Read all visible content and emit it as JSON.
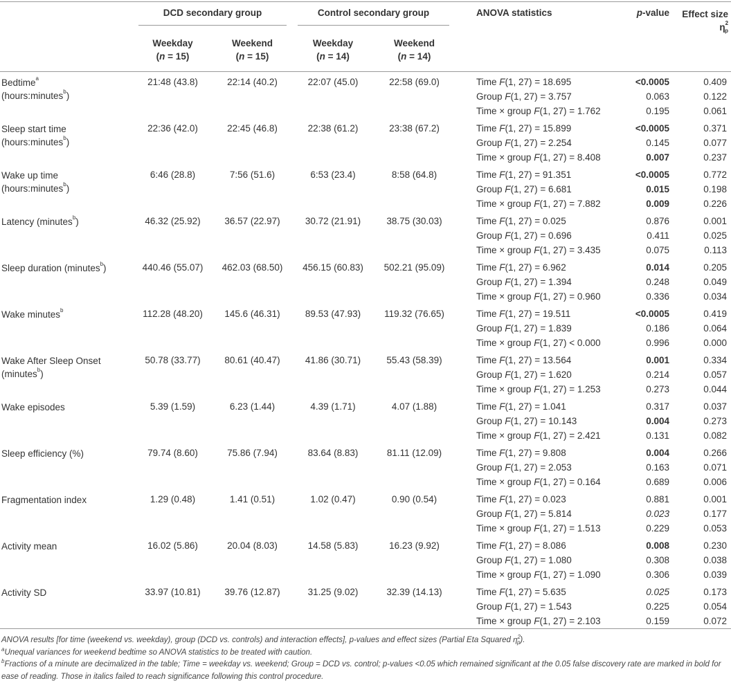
{
  "header": {
    "groups": [
      "DCD secondary group",
      "Control secondary group"
    ],
    "anova": "ANOVA statistics",
    "p": "p-value",
    "effect": [
      "Effect size η",
      {
        "sup": "2"
      },
      {
        "sub": "p"
      }
    ],
    "subheaders": [
      {
        "day": "Weekday",
        "n": "(n = 15)"
      },
      {
        "day": "Weekend",
        "n": "(n = 15)"
      },
      {
        "day": "Weekday",
        "n": "(n = 14)"
      },
      {
        "day": "Weekend",
        "n": "(n = 14)"
      }
    ]
  },
  "rows": [
    {
      "name": [
        "Bedtime",
        {
          "sup": "a"
        }
      ],
      "unit": [
        "(hours:minutes",
        {
          "sup": "b"
        },
        ")"
      ],
      "values": [
        "21:48 (43.8)",
        "22:14 (40.2)",
        "22:07 (45.0)",
        "22:58 (69.0)"
      ],
      "stats": [
        {
          "text": "Time F(1, 27) = 18.695",
          "p": "<0.0005",
          "p_style": "bold",
          "eta": "0.409"
        },
        {
          "text": "Group F(1, 27) = 3.757",
          "p": "0.063",
          "eta": "0.122"
        },
        {
          "text": "Time × group F(1, 27) = 1.762",
          "p": "0.195",
          "eta": "0.061"
        }
      ]
    },
    {
      "name": [
        "Sleep start time"
      ],
      "unit": [
        "(hours:minutes",
        {
          "sup": "b"
        },
        ")"
      ],
      "values": [
        "22:36 (42.0)",
        "22:45 (46.8)",
        "22:38 (61.2)",
        "23:38 (67.2)"
      ],
      "stats": [
        {
          "text": "Time F(1, 27) = 15.899",
          "p": "<0.0005",
          "p_style": "bold",
          "eta": "0.371"
        },
        {
          "text": "Group F(1, 27) = 2.254",
          "p": "0.145",
          "eta": "0.077"
        },
        {
          "text": "Time × group F(1, 27) = 8.408",
          "p": "0.007",
          "p_style": "bold",
          "eta": "0.237"
        }
      ]
    },
    {
      "name": [
        "Wake up time"
      ],
      "unit": [
        "(hours:minutes",
        {
          "sup": "b"
        },
        ")"
      ],
      "values": [
        "6:46 (28.8)",
        "7:56 (51.6)",
        "6:53 (23.4)",
        "8:58 (64.8)"
      ],
      "stats": [
        {
          "text": "Time F(1, 27) = 91.351",
          "p": "<0.0005",
          "p_style": "bold",
          "eta": "0.772"
        },
        {
          "text": "Group F(1, 27) = 6.681",
          "p": "0.015",
          "p_style": "bold",
          "eta": "0.198"
        },
        {
          "text": "Time × group F(1, 27) = 7.882",
          "p": "0.009",
          "p_style": "bold",
          "eta": "0.226"
        }
      ]
    },
    {
      "name": [
        "Latency (minutes",
        {
          "sup": "b"
        },
        ")"
      ],
      "values": [
        "46.32 (25.92)",
        "36.57 (22.97)",
        "30.72 (21.91)",
        "38.75 (30.03)"
      ],
      "stats": [
        {
          "text": "Time F(1, 27) = 0.025",
          "p": "0.876",
          "eta": "0.001"
        },
        {
          "text": "Group F(1, 27) = 0.696",
          "p": "0.411",
          "eta": "0.025"
        },
        {
          "text": "Time × group F(1, 27) = 3.435",
          "p": "0.075",
          "eta": "0.113"
        }
      ]
    },
    {
      "name": [
        "Sleep duration (minutes",
        {
          "sup": "b"
        },
        ")"
      ],
      "values": [
        "440.46 (55.07)",
        "462.03 (68.50)",
        "456.15 (60.83)",
        "502.21 (95.09)"
      ],
      "stats": [
        {
          "text": "Time F(1, 27) = 6.962",
          "p": "0.014",
          "p_style": "bold",
          "eta": "0.205"
        },
        {
          "text": "Group F(1, 27) = 1.394",
          "p": "0.248",
          "eta": "0.049"
        },
        {
          "text": "Time × group F(1, 27) = 0.960",
          "p": "0.336",
          "eta": "0.034"
        }
      ]
    },
    {
      "name": [
        "Wake minutes",
        {
          "sup": "b"
        }
      ],
      "values": [
        "112.28 (48.20)",
        "145.6 (46.31)",
        "89.53 (47.93)",
        "119.32 (76.65)"
      ],
      "stats": [
        {
          "text": "Time F(1, 27) = 19.511",
          "p": "<0.0005",
          "p_style": "bold",
          "eta": "0.419"
        },
        {
          "text": "Group F(1, 27) = 1.839",
          "p": "0.186",
          "eta": "0.064"
        },
        {
          "text": "Time × group F(1, 27) < 0.000",
          "p": "0.996",
          "eta": "0.000"
        }
      ]
    },
    {
      "name": [
        "Wake After Sleep Onset"
      ],
      "unit": [
        "(minutes",
        {
          "sup": "b"
        },
        ")"
      ],
      "values": [
        "50.78 (33.77)",
        "80.61 (40.47)",
        "41.86 (30.71)",
        "55.43 (58.39)"
      ],
      "stats": [
        {
          "text": "Time F(1, 27) = 13.564",
          "p": "0.001",
          "p_style": "bold",
          "eta": "0.334"
        },
        {
          "text": "Group F(1, 27) = 1.620",
          "p": "0.214",
          "eta": "0.057"
        },
        {
          "text": "Time × group F(1, 27) = 1.253",
          "p": "0.273",
          "eta": "0.044"
        }
      ]
    },
    {
      "name": [
        "Wake episodes"
      ],
      "values": [
        "5.39 (1.59)",
        "6.23 (1.44)",
        "4.39 (1.71)",
        "4.07 (1.88)"
      ],
      "stats": [
        {
          "text": "Time F(1, 27) = 1.041",
          "p": "0.317",
          "eta": "0.037"
        },
        {
          "text": "Group F(1, 27) = 10.143",
          "p": "0.004",
          "p_style": "bold",
          "eta": "0.273"
        },
        {
          "text": "Time × group F(1, 27) = 2.421",
          "p": "0.131",
          "eta": "0.082"
        }
      ]
    },
    {
      "name": [
        "Sleep efficiency (%)"
      ],
      "values": [
        "79.74 (8.60)",
        "75.86 (7.94)",
        "83.64 (8.83)",
        "81.11 (12.09)"
      ],
      "stats": [
        {
          "text": "Time F(1, 27) = 9.808",
          "p": "0.004",
          "p_style": "bold",
          "eta": "0.266"
        },
        {
          "text": "Group F(1, 27) = 2.053",
          "p": "0.163",
          "eta": "0.071"
        },
        {
          "text": "Time × group F(1, 27) = 0.164",
          "p": "0.689",
          "eta": "0.006"
        }
      ]
    },
    {
      "name": [
        "Fragmentation index"
      ],
      "values": [
        "1.29 (0.48)",
        "1.41 (0.51)",
        "1.02 (0.47)",
        "0.90 (0.54)"
      ],
      "stats": [
        {
          "text": "Time F(1, 27) = 0.023",
          "p": "0.881",
          "eta": "0.001"
        },
        {
          "text": "Group F(1, 27) = 5.814",
          "p": "0.023",
          "p_style": "italic",
          "eta": "0.177"
        },
        {
          "text": "Time × group F(1, 27) = 1.513",
          "p": "0.229",
          "eta": "0.053"
        }
      ]
    },
    {
      "name": [
        "Activity mean"
      ],
      "values": [
        "16.02 (5.86)",
        "20.04 (8.03)",
        "14.58 (5.83)",
        "16.23 (9.92)"
      ],
      "stats": [
        {
          "text": "Time F(1, 27) = 8.086",
          "p": "0.008",
          "p_style": "bold",
          "eta": "0.230"
        },
        {
          "text": "Group F(1, 27) = 1.080",
          "p": "0.308",
          "eta": "0.038"
        },
        {
          "text": "Time × group F(1, 27) = 1.090",
          "p": "0.306",
          "eta": "0.039"
        }
      ]
    },
    {
      "name": [
        "Activity SD"
      ],
      "values": [
        "33.97 (10.81)",
        "39.76 (12.87)",
        "31.25 (9.02)",
        "32.39 (14.13)"
      ],
      "stats": [
        {
          "text": "Time F(1, 27) = 5.635",
          "p": "0.025",
          "p_style": "italic",
          "eta": "0.173"
        },
        {
          "text": "Group F(1, 27) = 1.543",
          "p": "0.225",
          "eta": "0.054"
        },
        {
          "text": "Time × group F(1, 27) = 2.103",
          "p": "0.159",
          "eta": "0.072"
        }
      ]
    }
  ],
  "footnotes": [
    [
      "ANOVA results [for time (weekend vs. weekday), group (DCD vs. controls) and interaction effects], p-values and effect sizes (Partial Eta Squared η",
      {
        "sup": "2"
      },
      {
        "sub": "p"
      },
      ")."
    ],
    [
      {
        "sup": "a"
      },
      "Unequal variances for weekend bedtime so ANOVA statistics to be treated with caution."
    ],
    [
      {
        "sup": "b"
      },
      "Fractions of a minute are decimalized in the table; Time = weekday vs. weekend; Group = DCD vs. control; p-values <0.05 which remained significant at the 0.05 false discovery rate are marked in bold for ease of reading. Those in italics failed to reach significance following this control procedure."
    ]
  ]
}
